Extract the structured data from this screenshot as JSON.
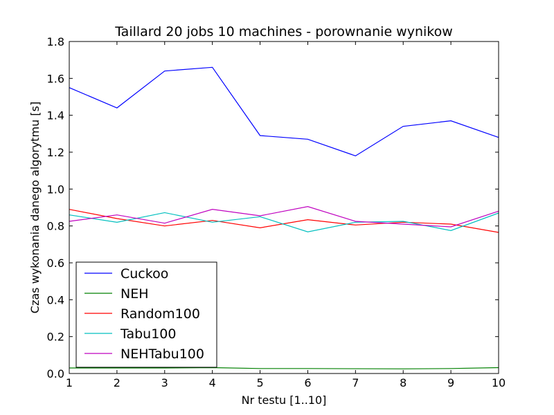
{
  "chart_data": {
    "type": "line",
    "title": "Taillard 20 jobs 10 machines - porownanie wynikow",
    "xlabel": "Nr testu [1..10]",
    "ylabel": "Czas wykonania danego algorytmu [s]",
    "x": [
      1,
      2,
      3,
      4,
      5,
      6,
      7,
      8,
      9,
      10
    ],
    "xlim": [
      1,
      10
    ],
    "ylim": [
      0.0,
      1.8
    ],
    "xticks": [
      "1",
      "2",
      "3",
      "4",
      "5",
      "6",
      "7",
      "8",
      "9",
      "10"
    ],
    "yticks": [
      "0.0",
      "0.2",
      "0.4",
      "0.6",
      "0.8",
      "1.0",
      "1.2",
      "1.4",
      "1.6",
      "1.8"
    ],
    "grid": false,
    "legend_position": "lower-left",
    "series": [
      {
        "name": "Cuckoo",
        "color": "#0000ff",
        "values": [
          1.55,
          1.44,
          1.64,
          1.66,
          1.29,
          1.27,
          1.18,
          1.34,
          1.37,
          1.28
        ]
      },
      {
        "name": "NEH",
        "color": "#008000",
        "values": [
          0.03,
          0.03,
          0.03,
          0.032,
          0.027,
          0.027,
          0.026,
          0.025,
          0.027,
          0.032
        ]
      },
      {
        "name": "Random100",
        "color": "#ff0000",
        "values": [
          0.89,
          0.84,
          0.8,
          0.83,
          0.79,
          0.834,
          0.805,
          0.82,
          0.81,
          0.765
        ]
      },
      {
        "name": "Tabu100",
        "color": "#00bfbf",
        "values": [
          0.86,
          0.82,
          0.872,
          0.82,
          0.85,
          0.768,
          0.82,
          0.825,
          0.775,
          0.87
        ]
      },
      {
        "name": "NEHTabu100",
        "color": "#bf00bf",
        "values": [
          0.825,
          0.86,
          0.815,
          0.89,
          0.855,
          0.905,
          0.825,
          0.81,
          0.795,
          0.88
        ]
      }
    ]
  }
}
